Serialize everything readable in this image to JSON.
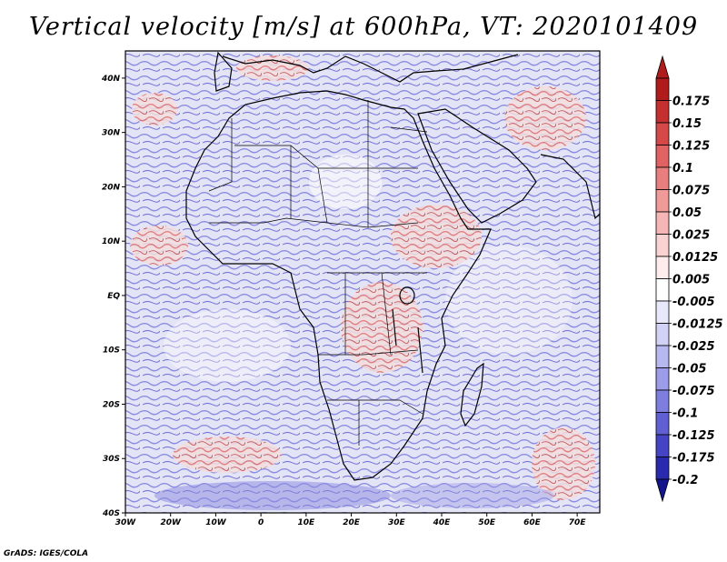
{
  "title": "Vertical velocity [m/s] at 600hPa, VT: 2020101409",
  "credit": "GrADS: IGES/COLA",
  "map": {
    "lon_range": [
      -30,
      75
    ],
    "lat_range": [
      -40,
      45
    ],
    "lat_ticks": [
      {
        "value": 40,
        "label": "40N"
      },
      {
        "value": 30,
        "label": "30N"
      },
      {
        "value": 20,
        "label": "20N"
      },
      {
        "value": 10,
        "label": "10N"
      },
      {
        "value": 0,
        "label": "EQ"
      },
      {
        "value": -10,
        "label": "10S"
      },
      {
        "value": -20,
        "label": "20S"
      },
      {
        "value": -30,
        "label": "30S"
      },
      {
        "value": -40,
        "label": "40S"
      }
    ],
    "lon_ticks": [
      {
        "value": -30,
        "label": "30W"
      },
      {
        "value": -20,
        "label": "20W"
      },
      {
        "value": -10,
        "label": "10W"
      },
      {
        "value": 0,
        "label": "0"
      },
      {
        "value": 10,
        "label": "10E"
      },
      {
        "value": 20,
        "label": "20E"
      },
      {
        "value": 30,
        "label": "30E"
      },
      {
        "value": 40,
        "label": "40E"
      },
      {
        "value": 50,
        "label": "50E"
      },
      {
        "value": 60,
        "label": "60E"
      },
      {
        "value": 70,
        "label": "70E"
      }
    ]
  },
  "colorbar": {
    "labels": [
      "0.175",
      "0.15",
      "0.125",
      "0.1",
      "0.075",
      "0.05",
      "0.025",
      "0.0125",
      "0.005",
      "-0.005",
      "-0.0125",
      "-0.025",
      "-0.05",
      "-0.075",
      "-0.1",
      "-0.125",
      "-0.175",
      "-0.2"
    ],
    "colors": [
      "#b01c1c",
      "#c43030",
      "#d44848",
      "#e06262",
      "#e87e7e",
      "#f09a9a",
      "#f6b6b6",
      "#fad2d2",
      "#ffecec",
      "#ffffff",
      "#e8e8fb",
      "#d2d2f6",
      "#b8b8f0",
      "#9c9ce8",
      "#7e7ede",
      "#6060d2",
      "#4444c4",
      "#2a2aae",
      "#14148c"
    ]
  }
}
